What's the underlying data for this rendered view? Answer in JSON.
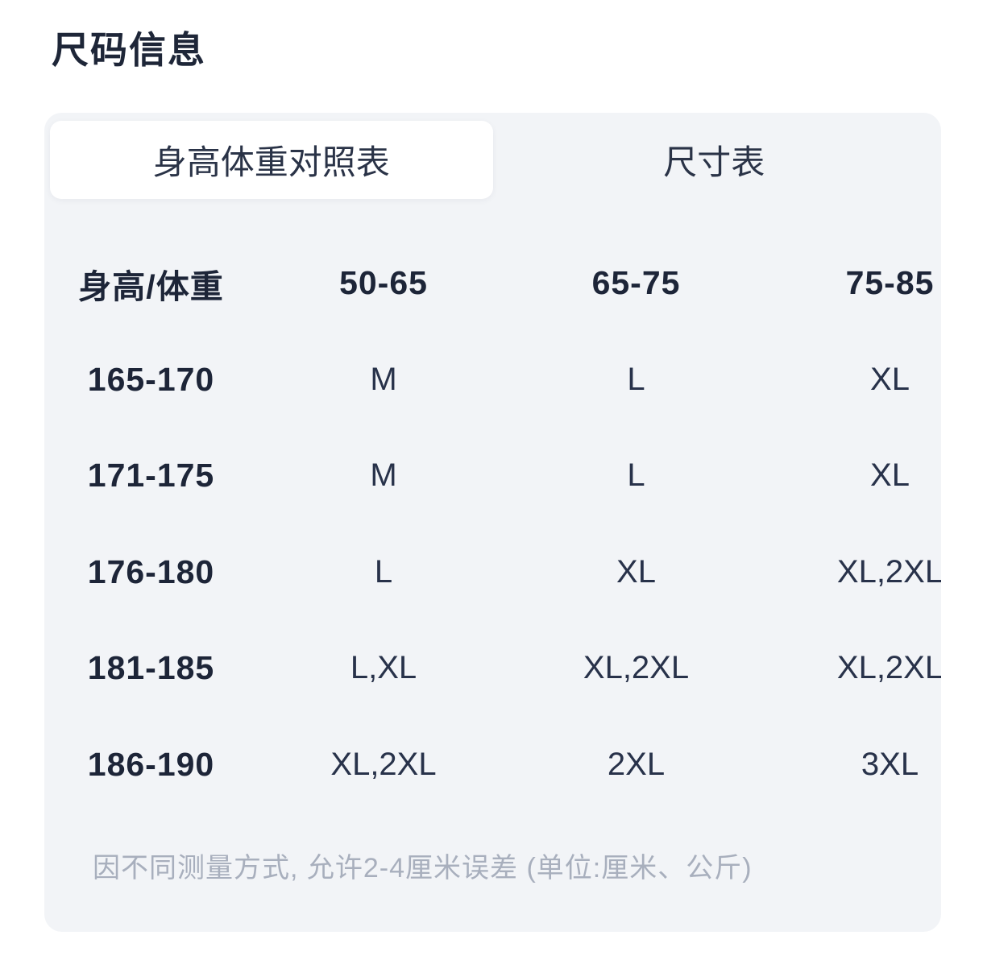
{
  "page": {
    "title": "尺码信息"
  },
  "tabs": {
    "height_weight": {
      "label": "身高体重对照表",
      "active": true
    },
    "size_chart": {
      "label": "尺寸表",
      "active": false
    }
  },
  "table": {
    "columns": [
      "身高/体重",
      "50-65",
      "65-75",
      "75-85"
    ],
    "rows": [
      {
        "label": "165-170",
        "values": [
          "M",
          "L",
          "XL"
        ]
      },
      {
        "label": "171-175",
        "values": [
          "M",
          "L",
          "XL"
        ]
      },
      {
        "label": "176-180",
        "values": [
          "L",
          "XL",
          "XL,2XL"
        ]
      },
      {
        "label": "181-185",
        "values": [
          "L,XL",
          "XL,2XL",
          "XL,2XL"
        ]
      },
      {
        "label": "186-190",
        "values": [
          "XL,2XL",
          "2XL",
          "3XL"
        ]
      }
    ]
  },
  "note": "因不同测量方式, 允许2-4厘米误差 (单位:厘米、公斤)",
  "colors": {
    "page_bg": "#ffffff",
    "card_bg": "#f2f4f7",
    "active_tab_bg": "#ffffff",
    "text_bold": "#1d2538",
    "text_regular": "#28324a",
    "tab_text": "#2a3347",
    "note_gray": "#a8afbd"
  }
}
